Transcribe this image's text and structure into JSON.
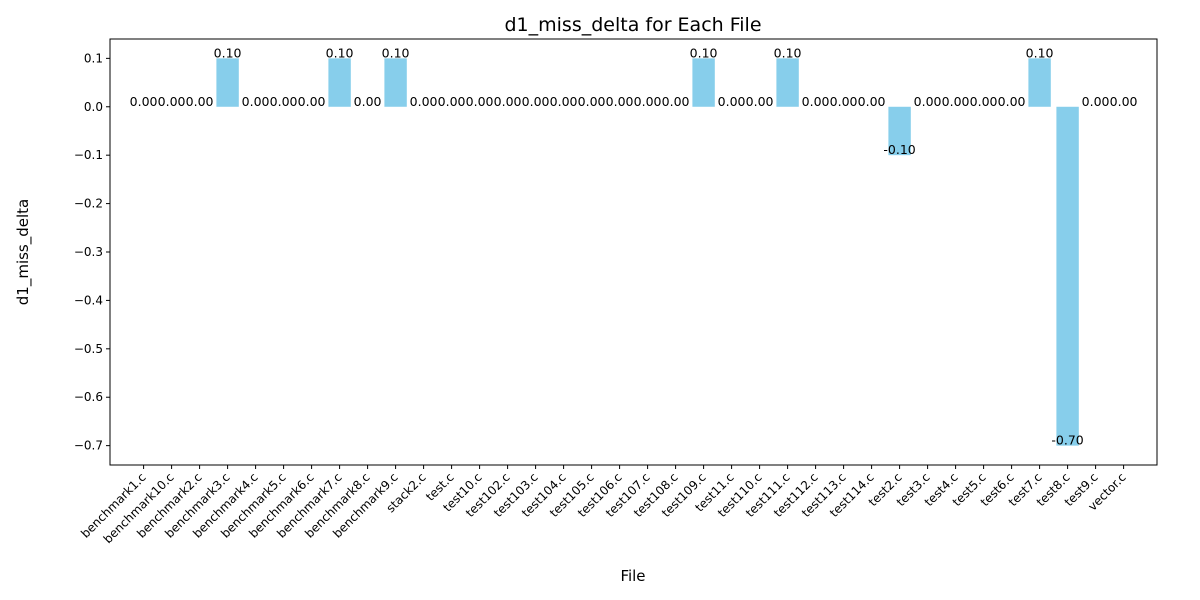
{
  "chart_data": {
    "type": "bar",
    "title": "d1_miss_delta for Each File",
    "xlabel": "File",
    "ylabel": "d1_miss_delta",
    "ylim": [
      -0.74,
      0.14
    ],
    "yticks": [
      0.1,
      0.0,
      -0.1,
      -0.2,
      -0.3,
      -0.4,
      -0.5,
      -0.6,
      -0.7
    ],
    "ytick_labels": [
      "0.1",
      "0.0",
      "−0.1",
      "−0.2",
      "−0.3",
      "−0.4",
      "−0.5",
      "−0.6",
      "−0.7"
    ],
    "bar_color": "#87ceeb",
    "grid": false,
    "categories": [
      "benchmark1.c",
      "benchmark10.c",
      "benchmark2.c",
      "benchmark3.c",
      "benchmark4.c",
      "benchmark5.c",
      "benchmark6.c",
      "benchmark7.c",
      "benchmark8.c",
      "benchmark9.c",
      "stack2.c",
      "test.c",
      "test10.c",
      "test102.c",
      "test103.c",
      "test104.c",
      "test105.c",
      "test106.c",
      "test107.c",
      "test108.c",
      "test109.c",
      "test11.c",
      "test110.c",
      "test111.c",
      "test112.c",
      "test113.c",
      "test114.c",
      "test2.c",
      "test3.c",
      "test4.c",
      "test5.c",
      "test6.c",
      "test7.c",
      "test8.c",
      "test9.c",
      "vector.c"
    ],
    "values": [
      0.0,
      0.0,
      0.0,
      0.1,
      0.0,
      0.0,
      0.0,
      0.1,
      0.0,
      0.1,
      0.0,
      0.0,
      0.0,
      0.0,
      0.0,
      0.0,
      0.0,
      0.0,
      0.0,
      0.0,
      0.1,
      0.0,
      0.0,
      0.1,
      0.0,
      0.0,
      0.0,
      -0.1,
      0.0,
      0.0,
      0.0,
      0.0,
      0.1,
      -0.7,
      0.0,
      0.0
    ],
    "data_labels": [
      "0.00",
      "0.00",
      "0.00",
      "0.10",
      "0.00",
      "0.00",
      "0.00",
      "0.10",
      "0.00",
      "0.10",
      "0.00",
      "0.00",
      "0.00",
      "0.00",
      "0.00",
      "0.00",
      "0.00",
      "0.00",
      "0.00",
      "0.00",
      "0.10",
      "0.00",
      "0.00",
      "0.10",
      "0.00",
      "0.00",
      "0.00",
      "-0.10",
      "0.00",
      "0.00",
      "0.00",
      "0.00",
      "0.10",
      "-0.70",
      "0.00",
      "0.00"
    ]
  }
}
